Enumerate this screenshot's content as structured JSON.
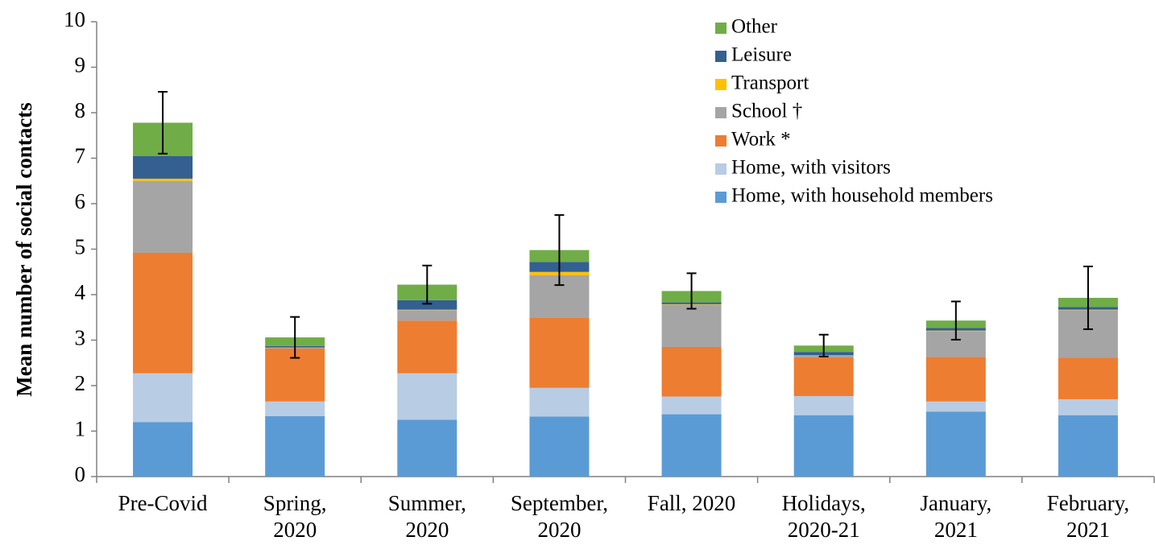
{
  "chart_data": {
    "type": "stacked-bar",
    "y_label": "Mean number of social contacts",
    "categories": [
      "Pre-Covid",
      "Spring,\n2020",
      "Summer,\n2020",
      "September,\n2020",
      "Fall, 2020",
      "Holidays,\n2020-21",
      "January,\n2021",
      "February,\n2021"
    ],
    "series": [
      {
        "name": "Home, with household members",
        "color": "#5b9bd5",
        "values": [
          1.2,
          1.33,
          1.25,
          1.32,
          1.37,
          1.35,
          1.43,
          1.35
        ]
      },
      {
        "name": "Home, with visitors",
        "color": "#b8cce4",
        "values": [
          1.07,
          0.32,
          1.02,
          0.63,
          0.39,
          0.42,
          0.22,
          0.35
        ]
      },
      {
        "name": "Work *",
        "color": "#ed7d31",
        "values": [
          2.65,
          1.17,
          1.16,
          1.55,
          1.09,
          0.85,
          0.98,
          0.91
        ]
      },
      {
        "name": "School †",
        "color": "#a5a5a5",
        "values": [
          1.58,
          0.02,
          0.23,
          0.93,
          0.93,
          0.05,
          0.57,
          1.05
        ]
      },
      {
        "name": "Transport",
        "color": "#ffc000",
        "values": [
          0.05,
          0,
          0.01,
          0.07,
          0.01,
          0,
          0.01,
          0.01
        ]
      },
      {
        "name": "Leisure",
        "color": "#335f91",
        "values": [
          0.5,
          0.03,
          0.21,
          0.22,
          0.04,
          0.07,
          0.06,
          0.06
        ]
      },
      {
        "name": "Other",
        "color": "#70ad47",
        "values": [
          0.73,
          0.19,
          0.34,
          0.26,
          0.25,
          0.14,
          0.16,
          0.2
        ]
      }
    ],
    "errors": [
      0.68,
      0.45,
      0.42,
      0.77,
      0.39,
      0.24,
      0.42,
      0.69
    ],
    "ylim": [
      0,
      10
    ],
    "yticks": [
      0,
      1,
      2,
      3,
      4,
      5,
      6,
      7,
      8,
      9,
      10
    ],
    "grid": false,
    "legend": "top-right"
  }
}
